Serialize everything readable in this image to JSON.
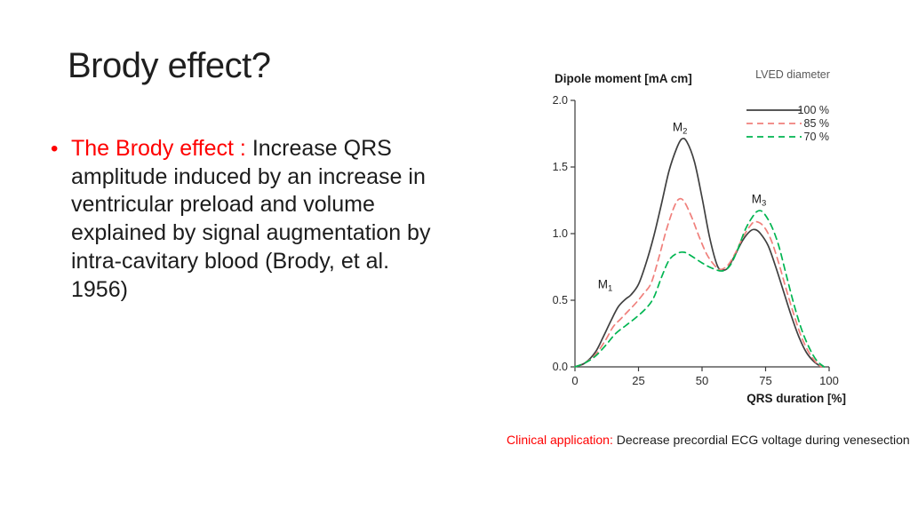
{
  "slide": {
    "title": "Brody effect?",
    "bullet": {
      "lead": "The Brody effect : ",
      "line1_rest": "Increase QRS",
      "lines": [
        "amplitude induced by an increase in",
        "ventricular preload and volume",
        "explained by signal augmentation by",
        "intra-cavitary blood (Brody, et al.",
        "1956)"
      ],
      "bullet_glyph": "•"
    },
    "caption": {
      "lead": "Clinical application:",
      "rest": " Decrease precordial ECG voltage during venesection"
    }
  },
  "colors": {
    "accent_red": "#ff0000",
    "axis": "#3a3a3a",
    "tick_text": "#2b2b2b",
    "legend_header": "#595959",
    "series_100": "#404040",
    "series_85": "#f0807c",
    "series_70": "#00b551"
  },
  "chart_data": {
    "type": "line",
    "title": "",
    "ylabel": "Dipole moment [mA cm]",
    "xlabel": "QRS duration [%]",
    "legend_title": "LVED diameter",
    "legend_position": "top-right",
    "grid": false,
    "xlim": [
      0,
      100
    ],
    "ylim": [
      0,
      2
    ],
    "x_ticks": [
      "0",
      "25",
      "50",
      "75",
      "100"
    ],
    "y_ticks": [
      "0.0",
      "0.5",
      "1.0",
      "1.5",
      "2.0"
    ],
    "series": [
      {
        "name": "100 %",
        "color": "#404040",
        "dash": null,
        "points": [
          [
            0,
            0
          ],
          [
            4,
            0.03
          ],
          [
            8,
            0.11
          ],
          [
            11,
            0.22
          ],
          [
            14,
            0.34
          ],
          [
            17,
            0.45
          ],
          [
            20,
            0.51
          ],
          [
            22,
            0.54
          ],
          [
            25,
            0.62
          ],
          [
            28,
            0.78
          ],
          [
            31,
            0.98
          ],
          [
            34,
            1.22
          ],
          [
            37,
            1.47
          ],
          [
            40,
            1.64
          ],
          [
            42,
            1.71
          ],
          [
            44,
            1.69
          ],
          [
            47,
            1.54
          ],
          [
            50,
            1.27
          ],
          [
            53,
            0.97
          ],
          [
            56,
            0.76
          ],
          [
            58,
            0.73
          ],
          [
            60,
            0.74
          ],
          [
            63,
            0.84
          ],
          [
            66,
            0.95
          ],
          [
            69,
            1.02
          ],
          [
            71,
            1.03
          ],
          [
            73,
            1.0
          ],
          [
            76,
            0.91
          ],
          [
            79,
            0.75
          ],
          [
            82,
            0.57
          ],
          [
            85,
            0.39
          ],
          [
            88,
            0.23
          ],
          [
            91,
            0.11
          ],
          [
            94,
            0.04
          ],
          [
            97,
            0
          ]
        ]
      },
      {
        "name": "85 %",
        "color": "#f0807c",
        "dash": "7,5",
        "points": [
          [
            0,
            0
          ],
          [
            4,
            0.03
          ],
          [
            8,
            0.09
          ],
          [
            12,
            0.2
          ],
          [
            15,
            0.3
          ],
          [
            18,
            0.36
          ],
          [
            21,
            0.42
          ],
          [
            24,
            0.48
          ],
          [
            27,
            0.55
          ],
          [
            30,
            0.63
          ],
          [
            33,
            0.82
          ],
          [
            36,
            1.03
          ],
          [
            39,
            1.2
          ],
          [
            41,
            1.26
          ],
          [
            43,
            1.24
          ],
          [
            46,
            1.12
          ],
          [
            49,
            0.97
          ],
          [
            52,
            0.84
          ],
          [
            55,
            0.76
          ],
          [
            57,
            0.73
          ],
          [
            60,
            0.76
          ],
          [
            63,
            0.85
          ],
          [
            66,
            0.97
          ],
          [
            69,
            1.06
          ],
          [
            71,
            1.09
          ],
          [
            74,
            1.06
          ],
          [
            77,
            0.96
          ],
          [
            80,
            0.79
          ],
          [
            83,
            0.59
          ],
          [
            86,
            0.4
          ],
          [
            89,
            0.23
          ],
          [
            92,
            0.11
          ],
          [
            95,
            0.03
          ],
          [
            97,
            0
          ]
        ]
      },
      {
        "name": "70 %",
        "color": "#00b551",
        "dash": "7,5",
        "points": [
          [
            0,
            0
          ],
          [
            4,
            0.03
          ],
          [
            8,
            0.08
          ],
          [
            12,
            0.16
          ],
          [
            16,
            0.25
          ],
          [
            20,
            0.31
          ],
          [
            24,
            0.37
          ],
          [
            28,
            0.44
          ],
          [
            31,
            0.52
          ],
          [
            34,
            0.67
          ],
          [
            37,
            0.8
          ],
          [
            40,
            0.85
          ],
          [
            43,
            0.86
          ],
          [
            46,
            0.83
          ],
          [
            50,
            0.78
          ],
          [
            54,
            0.74
          ],
          [
            58,
            0.72
          ],
          [
            61,
            0.76
          ],
          [
            64,
            0.88
          ],
          [
            67,
            1.03
          ],
          [
            70,
            1.13
          ],
          [
            72,
            1.17
          ],
          [
            74,
            1.16
          ],
          [
            77,
            1.07
          ],
          [
            80,
            0.92
          ],
          [
            83,
            0.7
          ],
          [
            86,
            0.48
          ],
          [
            89,
            0.29
          ],
          [
            92,
            0.15
          ],
          [
            95,
            0.05
          ],
          [
            98,
            0
          ]
        ]
      }
    ],
    "annotations": [
      {
        "base": "M",
        "sub": "1",
        "x": 11.9,
        "y": 0.59
      },
      {
        "base": "M",
        "sub": "2",
        "x": 41.3,
        "y": 1.77
      },
      {
        "base": "M",
        "sub": "3",
        "x": 72.4,
        "y": 1.23
      }
    ]
  }
}
